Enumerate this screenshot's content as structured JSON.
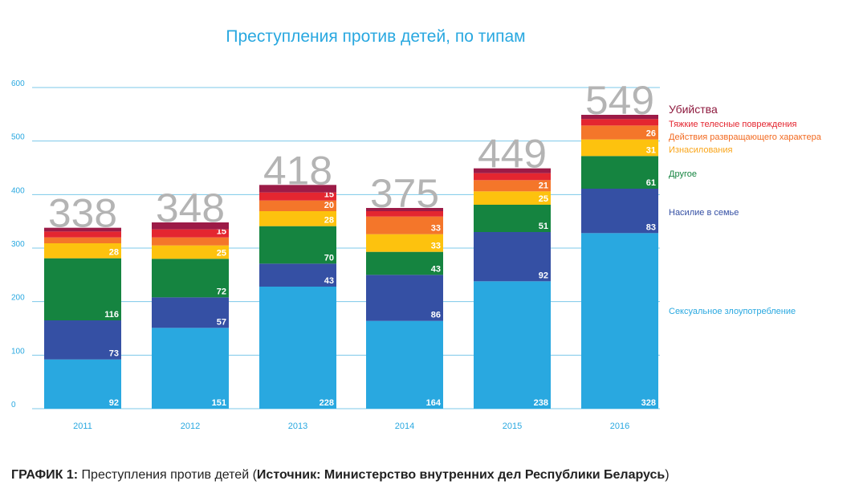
{
  "chart_data": {
    "type": "stacked-bar",
    "title": "Преступления против детей, по типам",
    "categories": [
      "2011",
      "2012",
      "2013",
      "2014",
      "2015",
      "2016"
    ],
    "totals": [
      338,
      348,
      418,
      375,
      449,
      549
    ],
    "ylim": [
      0,
      600
    ],
    "yticks": [
      0,
      100,
      200,
      300,
      400,
      500,
      600
    ],
    "series": [
      {
        "name": "Сексуальное злоупотребление",
        "color": "#29a8e0",
        "values": [
          92,
          151,
          228,
          164,
          238,
          328
        ],
        "labels": [
          "92",
          "151",
          "228",
          "164",
          "238",
          "328"
        ]
      },
      {
        "name": "Насилие в семье",
        "color": "#3550a4",
        "values": [
          73,
          57,
          43,
          86,
          92,
          83
        ],
        "labels": [
          "73",
          "57",
          "43",
          "86",
          "92",
          "83"
        ]
      },
      {
        "name": "Другое",
        "color": "#158440",
        "values": [
          116,
          72,
          70,
          43,
          51,
          61
        ],
        "labels": [
          "116",
          "72",
          "70",
          "43",
          "51",
          "61"
        ]
      },
      {
        "name": "Изнасилования",
        "color": "#fdc20e",
        "values": [
          28,
          25,
          28,
          33,
          25,
          31
        ],
        "labels": [
          "28",
          "25",
          "28",
          "33",
          "25",
          "31"
        ]
      },
      {
        "name": "Действия развращающего характера",
        "color": "#f4762a",
        "values": [
          11,
          15,
          20,
          33,
          21,
          26
        ],
        "labels": [
          "",
          "",
          "20",
          "33",
          "21",
          "26"
        ]
      },
      {
        "name": "Тяжкие телесные повреждения",
        "color": "#e42630",
        "values": [
          11,
          15,
          15,
          10,
          13,
          12
        ],
        "labels": [
          "",
          "15",
          "15",
          "",
          "",
          ""
        ]
      },
      {
        "name": "Убийства",
        "color": "#9c1b47",
        "values": [
          7,
          13,
          14,
          6,
          9,
          8
        ],
        "labels": [
          "",
          "",
          "",
          "",
          "",
          ""
        ]
      }
    ],
    "legend": [
      {
        "text": "Убийства",
        "color": "#8e1a3e"
      },
      {
        "text": "Тяжкие телесные повреждения",
        "color": "#e42630"
      },
      {
        "text": "Действия развращающего характера",
        "color": "#f26a21"
      },
      {
        "text": "Изнасилования",
        "color": "#f9a51a"
      },
      {
        "text": "Другое",
        "color": "#158440"
      },
      {
        "text": "Насилие в семье",
        "color": "#3550a4"
      },
      {
        "text": "Сексуальное злоупотребление",
        "color": "#29a8e0"
      }
    ]
  },
  "caption": {
    "label": "ГРАФИК 1:",
    "text": "Преступления против детей (",
    "source_label": "Источник: Министерство внутренних дел Республики Беларусь",
    "close": ")"
  }
}
